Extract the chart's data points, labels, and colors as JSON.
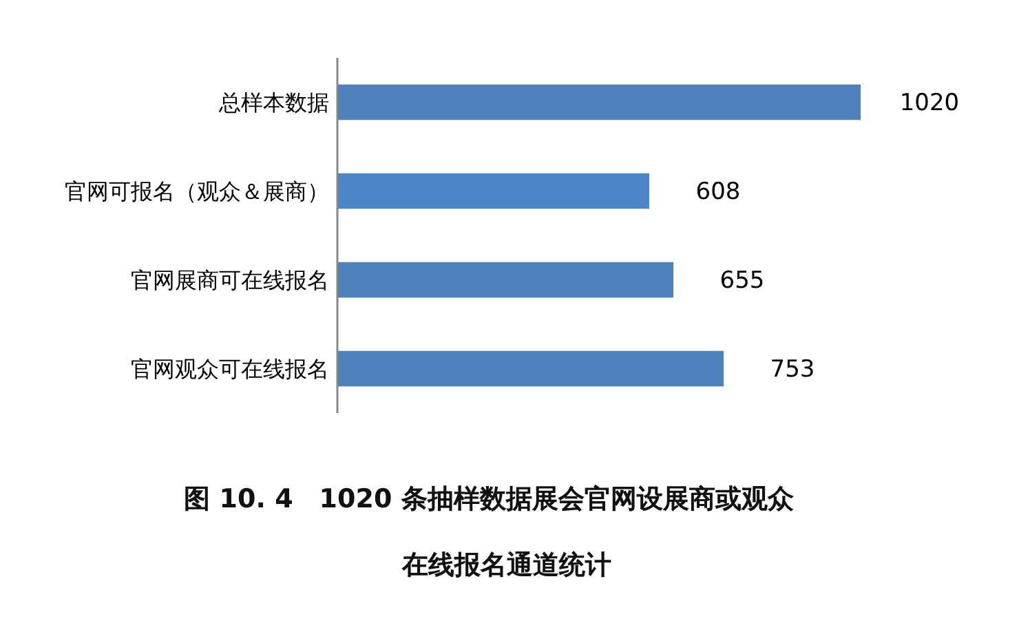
{
  "chart_data": {
    "type": "bar",
    "orientation": "horizontal",
    "title": "图 10. 4　1020 条抽样数据展会官网设展商或观众在线报名通道统计",
    "categories": [
      "总样本数据",
      "官网可报名（观众＆展商）",
      "官网展商可在线报名",
      "官网观众可在线报名"
    ],
    "values": [
      1020,
      608,
      655,
      753
    ],
    "colors": [
      "#4f81bd",
      "#4a86c8",
      "#4f81bd",
      "#4f81bd"
    ],
    "data_labels": true
  }
}
